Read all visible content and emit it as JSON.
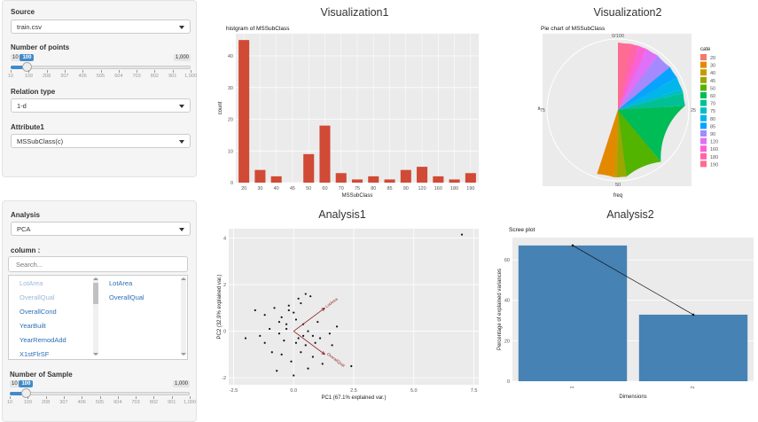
{
  "sidebar_top": {
    "source": {
      "label": "Source",
      "value": "train.csv"
    },
    "num_points": {
      "label": "Number of points",
      "min": "10",
      "max": "1,000",
      "current": "100",
      "fraction": 0.091,
      "ticks": [
        "10",
        "109",
        "208",
        "307",
        "406",
        "505",
        "604",
        "703",
        "802",
        "901",
        "1,000"
      ]
    },
    "relation": {
      "label": "Relation type",
      "value": "1-d"
    },
    "attribute": {
      "label": "Attribute1",
      "value": "MSSubClass(c)"
    }
  },
  "sidebar_bottom": {
    "analysis": {
      "label": "Analysis",
      "value": "PCA"
    },
    "column": {
      "label": "column :",
      "search_placeholder": "Search..."
    },
    "available": [
      "LotArea",
      "OverallQual",
      "OverallCond",
      "YearBuilt",
      "YearRemodAdd",
      "X1stFlrSF"
    ],
    "selected": [
      "LotArea",
      "OverallQual"
    ],
    "num_sample": {
      "label": "Number of Sample",
      "min": "10",
      "max": "1,000",
      "current": "100",
      "fraction": 0.091,
      "ticks": [
        "10",
        "109",
        "208",
        "307",
        "406",
        "505",
        "604",
        "703",
        "802",
        "901",
        "1,000"
      ]
    }
  },
  "titles": {
    "vis1": "Visualization1",
    "vis2": "Visualization2",
    "an1": "Analysis1",
    "an2": "Analysis2"
  },
  "colors": {
    "bar": "#d04a35",
    "panel_bg": "#ebebeb",
    "pca_arrow": "#8b1a1a",
    "scree_bar": "#4682b4"
  },
  "chart_data": [
    {
      "type": "bar",
      "title": "histgram of MSSubClass",
      "xlabel": "MSSubClass",
      "ylabel": "count",
      "categories": [
        "20",
        "30",
        "40",
        "45",
        "50",
        "60",
        "70",
        "75",
        "80",
        "85",
        "90",
        "120",
        "160",
        "180",
        "190"
      ],
      "values": [
        45,
        4,
        2,
        0,
        9,
        18,
        3,
        1,
        2,
        1,
        4,
        5,
        2,
        1,
        3
      ],
      "yticks": [
        "0",
        "10",
        "20",
        "30",
        "40"
      ],
      "ylim": [
        0,
        47
      ]
    },
    {
      "type": "pie",
      "title": "Pie chart of MSSubClass",
      "xlabel": "freq",
      "ylabel": "x",
      "legend_title": "cate",
      "legend_position": "right",
      "ring_labels": [
        "0/100",
        "25",
        "50",
        "75"
      ],
      "categories": [
        "20",
        "30",
        "40",
        "45",
        "50",
        "60",
        "70",
        "75",
        "80",
        "85",
        "90",
        "120",
        "160",
        "180",
        "190"
      ],
      "values": [
        45,
        4,
        1,
        2,
        9,
        15,
        3,
        1,
        3,
        3,
        4,
        3,
        2,
        2,
        3
      ],
      "colors": [
        "#f8766d",
        "#e38900",
        "#c49a00",
        "#99a800",
        "#53b400",
        "#00bc56",
        "#00c094",
        "#00bfc4",
        "#00b6eb",
        "#06a4ff",
        "#a58aff",
        "#df70f8",
        "#fb61d7",
        "#ff66a8",
        "#ff6c91"
      ]
    },
    {
      "type": "scatter",
      "title": "",
      "xlabel": "PC1 (67.1% explained var.)",
      "ylabel": "PC2 (32.9% explained var.)",
      "xticks": [
        "-2.5",
        "0.0",
        "2.5",
        "5.0",
        "7.5"
      ],
      "yticks": [
        "-2",
        "0",
        "2",
        "4"
      ],
      "xlim": [
        -2.7,
        7.7
      ],
      "ylim": [
        -2.3,
        4.4
      ],
      "arrows": [
        {
          "label": "LotArea",
          "x": 1.3,
          "y": 1.0
        },
        {
          "label": "OverallQual",
          "x": 1.3,
          "y": -1.0
        }
      ],
      "points": [
        [
          7.0,
          4.15
        ],
        [
          -2.0,
          -0.3
        ],
        [
          -1.6,
          0.9
        ],
        [
          -1.2,
          0.7
        ],
        [
          -0.8,
          1.0
        ],
        [
          -0.5,
          0.6
        ],
        [
          -1.0,
          0.1
        ],
        [
          -0.6,
          -0.1
        ],
        [
          -0.3,
          0.3
        ],
        [
          0.0,
          0.8
        ],
        [
          0.3,
          1.2
        ],
        [
          0.1,
          0.5
        ],
        [
          -0.2,
          0.9
        ],
        [
          0.5,
          1.6
        ],
        [
          0.2,
          1.4
        ],
        [
          0.4,
          0.3
        ],
        [
          0.6,
          0.0
        ],
        [
          0.8,
          -0.2
        ],
        [
          0.2,
          -0.3
        ],
        [
          -0.4,
          -0.4
        ],
        [
          -1.2,
          -0.5
        ],
        [
          -0.9,
          -0.9
        ],
        [
          -0.5,
          -1.0
        ],
        [
          -0.1,
          -1.3
        ],
        [
          0.3,
          -0.9
        ],
        [
          0.5,
          -0.6
        ],
        [
          0.9,
          -0.5
        ],
        [
          1.1,
          -0.3
        ],
        [
          1.5,
          -0.1
        ],
        [
          1.6,
          -0.6
        ],
        [
          0.8,
          -1.1
        ],
        [
          1.2,
          -1.4
        ],
        [
          0.6,
          -1.6
        ],
        [
          0.0,
          -1.9
        ],
        [
          -0.7,
          -1.7
        ],
        [
          2.4,
          -1.5
        ],
        [
          1.8,
          0.2
        ],
        [
          -1.4,
          -0.2
        ],
        [
          -0.2,
          1.1
        ],
        [
          0.7,
          1.5
        ],
        [
          0.1,
          -0.5
        ],
        [
          -0.3,
          0.1
        ],
        [
          0.4,
          -0.2
        ],
        [
          1.0,
          0.4
        ],
        [
          -0.6,
          0.4
        ]
      ]
    },
    {
      "type": "bar",
      "title": "Scree plot",
      "xlabel": "Dimensions",
      "ylabel": "Percentage of explained variances",
      "categories": [
        "1",
        "2"
      ],
      "values": [
        67.1,
        32.9
      ],
      "yticks": [
        "0",
        "20",
        "40",
        "60"
      ],
      "ylim": [
        0,
        71
      ]
    }
  ]
}
